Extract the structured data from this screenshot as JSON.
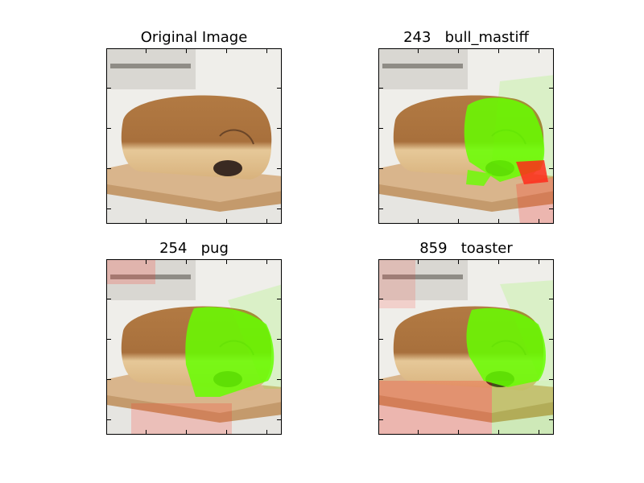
{
  "figure": {
    "panels": [
      {
        "id": "original",
        "title": "Original Image",
        "overlay": "none"
      },
      {
        "id": "bull_mastiff",
        "title": "243   bull_mastiff",
        "overlay": "bull_mastiff"
      },
      {
        "id": "pug",
        "title": "254   pug",
        "overlay": "pug"
      },
      {
        "id": "toaster",
        "title": "859   toaster",
        "overlay": "toaster"
      }
    ],
    "colors": {
      "positive": "#66ff00",
      "negative": "#ff2a1a",
      "bread_top": "#b27a43",
      "bread_bottom": "#e6c898",
      "board": "#d9b58c",
      "background": "#efeeea"
    }
  }
}
